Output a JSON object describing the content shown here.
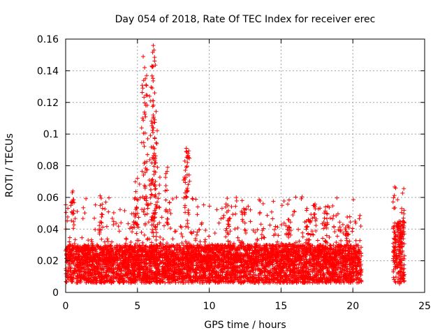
{
  "chart_data": {
    "type": "scatter",
    "title": "Day 054 of 2018, Rate Of TEC Index for receiver erec",
    "xlabel": "GPS time / hours",
    "ylabel": "ROTI / TECUs",
    "xlim": [
      0,
      25
    ],
    "ylim": [
      0,
      0.16
    ],
    "xticks": [
      0,
      5,
      10,
      15,
      20,
      25
    ],
    "xtick_labels": [
      "0",
      "5",
      "10",
      "15",
      "20",
      "25"
    ],
    "yticks": [
      0,
      0.02,
      0.04,
      0.06,
      0.08,
      0.1,
      0.12,
      0.14,
      0.16
    ],
    "ytick_labels": [
      "0",
      "0.02",
      "0.04",
      "0.06",
      "0.08",
      "0.1",
      "0.12",
      "0.14",
      "0.16"
    ],
    "grid": true,
    "marker": "+",
    "color": "#ff0000",
    "data_coverage": [
      {
        "start_hour": 0,
        "end_hour": 20.6,
        "typical_min": 0.006,
        "typical_max": 0.03
      },
      {
        "start_hour": 22.8,
        "end_hour": 23.6,
        "typical_min": 0.005,
        "typical_max": 0.045
      }
    ],
    "notable_peaks": [
      {
        "x": 0.5,
        "y": 0.064
      },
      {
        "x": 2.4,
        "y": 0.061
      },
      {
        "x": 4.8,
        "y": 0.059
      },
      {
        "x": 5.0,
        "y": 0.072
      },
      {
        "x": 5.4,
        "y": 0.149
      },
      {
        "x": 5.5,
        "y": 0.142
      },
      {
        "x": 5.6,
        "y": 0.131
      },
      {
        "x": 5.7,
        "y": 0.087
      },
      {
        "x": 6.0,
        "y": 0.143
      },
      {
        "x": 6.1,
        "y": 0.156
      },
      {
        "x": 6.15,
        "y": 0.153
      },
      {
        "x": 6.2,
        "y": 0.126
      },
      {
        "x": 6.1,
        "y": 0.112
      },
      {
        "x": 6.2,
        "y": 0.109
      },
      {
        "x": 6.1,
        "y": 0.092
      },
      {
        "x": 6.4,
        "y": 0.079
      },
      {
        "x": 7.1,
        "y": 0.079
      },
      {
        "x": 8.3,
        "y": 0.083
      },
      {
        "x": 8.4,
        "y": 0.091
      },
      {
        "x": 8.5,
        "y": 0.086
      },
      {
        "x": 11.3,
        "y": 0.055
      },
      {
        "x": 12.4,
        "y": 0.053
      },
      {
        "x": 15.5,
        "y": 0.046
      },
      {
        "x": 16.9,
        "y": 0.046
      },
      {
        "x": 17.3,
        "y": 0.055
      },
      {
        "x": 18.1,
        "y": 0.054
      },
      {
        "x": 19.6,
        "y": 0.042
      },
      {
        "x": 23.4,
        "y": 0.053
      }
    ]
  }
}
